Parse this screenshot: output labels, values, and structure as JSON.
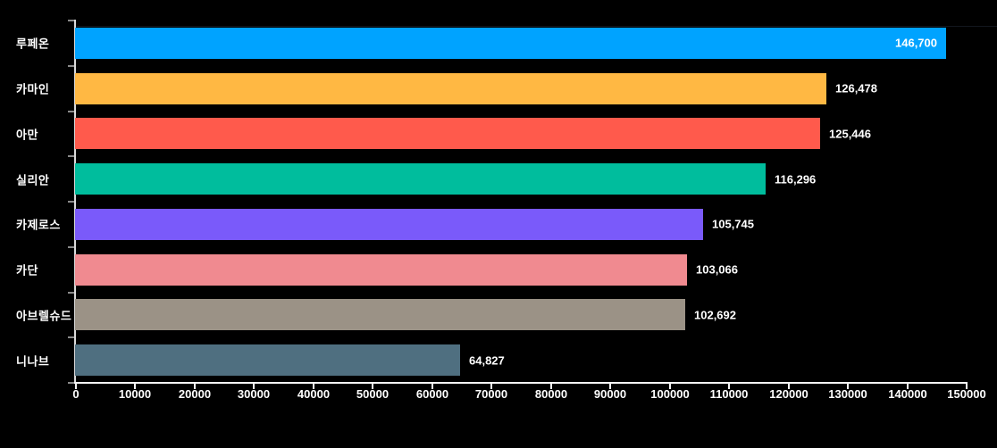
{
  "chart_data": {
    "type": "bar",
    "orientation": "horizontal",
    "categories": [
      "루페온",
      "카마인",
      "아만",
      "실리안",
      "카제로스",
      "카단",
      "아브렐슈드",
      "니나브"
    ],
    "values": [
      146700,
      126478,
      125446,
      116296,
      105745,
      103066,
      102692,
      64827
    ],
    "value_labels": [
      "146,700",
      "126,478",
      "125,446",
      "116,296",
      "105,745",
      "103,066",
      "102,692",
      "64,827"
    ],
    "bar_colors": [
      "#00A3FF",
      "#FFB843",
      "#FF5A4C",
      "#00BD9D",
      "#7A5AFA",
      "#F08A90",
      "#9B9286",
      "#4F6F80"
    ],
    "xlim": [
      0,
      150000
    ],
    "x_tick_step": 10000,
    "x_tick_labels": [
      "0",
      "10000",
      "20000",
      "30000",
      "40000",
      "50000",
      "60000",
      "70000",
      "80000",
      "90000",
      "100000",
      "110000",
      "120000",
      "130000",
      "140000",
      "150000"
    ],
    "grid": "off",
    "legend": "none",
    "background_color": "#000000",
    "axis_color": "#F5F5F5",
    "category_label_color": "#FFFFFF",
    "value_label_color": "#FFFFFF",
    "tick_label_color": "#FFFFFF",
    "boundary_tick_color": "#8A8A8A"
  }
}
